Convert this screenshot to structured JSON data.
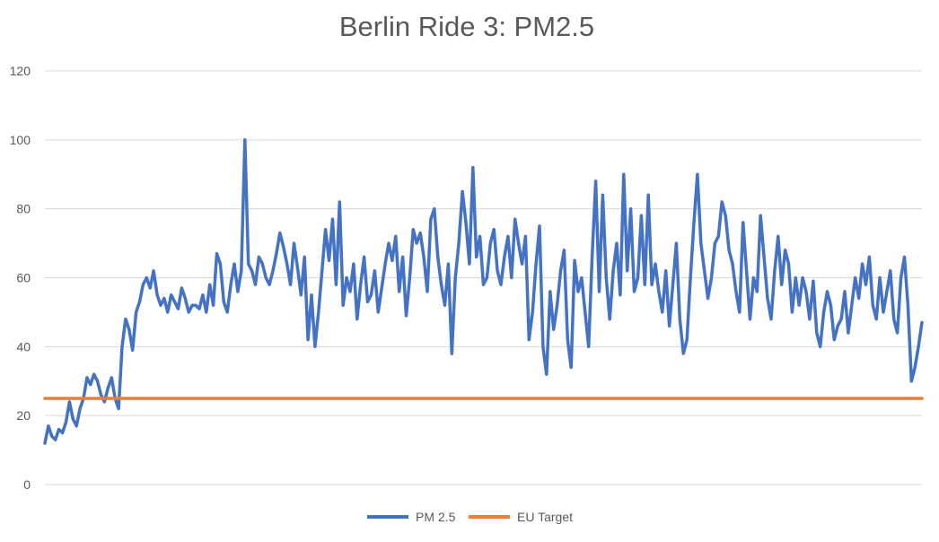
{
  "chart_data": {
    "type": "line",
    "title": "Berlin Ride 3: PM2.5",
    "xlabel": "",
    "ylabel": "",
    "ylim": [
      0,
      120
    ],
    "yticks": [
      0,
      20,
      40,
      60,
      80,
      100,
      120
    ],
    "grid": true,
    "legend_position": "bottom",
    "series": [
      {
        "name": "PM 2.5",
        "color": "#4472C4",
        "values": [
          12,
          17,
          14,
          13,
          16,
          15,
          18,
          24,
          19,
          17,
          22,
          25,
          31,
          29,
          32,
          30,
          26,
          24,
          28,
          31,
          25,
          22,
          40,
          48,
          45,
          39,
          50,
          53,
          58,
          60,
          57,
          62,
          55,
          52,
          54,
          50,
          55,
          53,
          51,
          57,
          54,
          50,
          52,
          52,
          51,
          55,
          50,
          58,
          52,
          67,
          64,
          53,
          50,
          58,
          64,
          56,
          62,
          100,
          64,
          62,
          58,
          66,
          64,
          60,
          58,
          62,
          67,
          73,
          69,
          64,
          58,
          70,
          63,
          55,
          66,
          42,
          55,
          40,
          50,
          62,
          74,
          65,
          77,
          58,
          82,
          52,
          60,
          56,
          64,
          48,
          58,
          66,
          53,
          55,
          62,
          50,
          57,
          64,
          70,
          65,
          72,
          56,
          66,
          49,
          60,
          74,
          70,
          73,
          66,
          56,
          77,
          80,
          66,
          58,
          52,
          64,
          38,
          60,
          70,
          85,
          76,
          64,
          92,
          66,
          72,
          58,
          60,
          70,
          74,
          62,
          58,
          66,
          72,
          60,
          77,
          70,
          64,
          72,
          42,
          50,
          64,
          75,
          40,
          32,
          56,
          45,
          52,
          62,
          68,
          42,
          34,
          65,
          56,
          60,
          50,
          40,
          66,
          88,
          56,
          84,
          60,
          48,
          62,
          70,
          55,
          90,
          62,
          80,
          56,
          60,
          78,
          58,
          84,
          58,
          64,
          56,
          50,
          62,
          46,
          58,
          70,
          48,
          38,
          42,
          60,
          76,
          90,
          70,
          62,
          54,
          60,
          70,
          72,
          82,
          78,
          68,
          64,
          56,
          50,
          76,
          62,
          48,
          60,
          56,
          78,
          66,
          54,
          48,
          62,
          72,
          58,
          68,
          64,
          50,
          60,
          52,
          60,
          56,
          48,
          59,
          44,
          40,
          50,
          56,
          52,
          42,
          46,
          48,
          56,
          44,
          52,
          60,
          54,
          64,
          58,
          66,
          52,
          48,
          60,
          50,
          56,
          62,
          48,
          44,
          60,
          66,
          52,
          30,
          34,
          40,
          47
        ]
      },
      {
        "name": "EU Target",
        "color": "#ED7D31",
        "values": [
          25,
          25
        ]
      }
    ]
  }
}
